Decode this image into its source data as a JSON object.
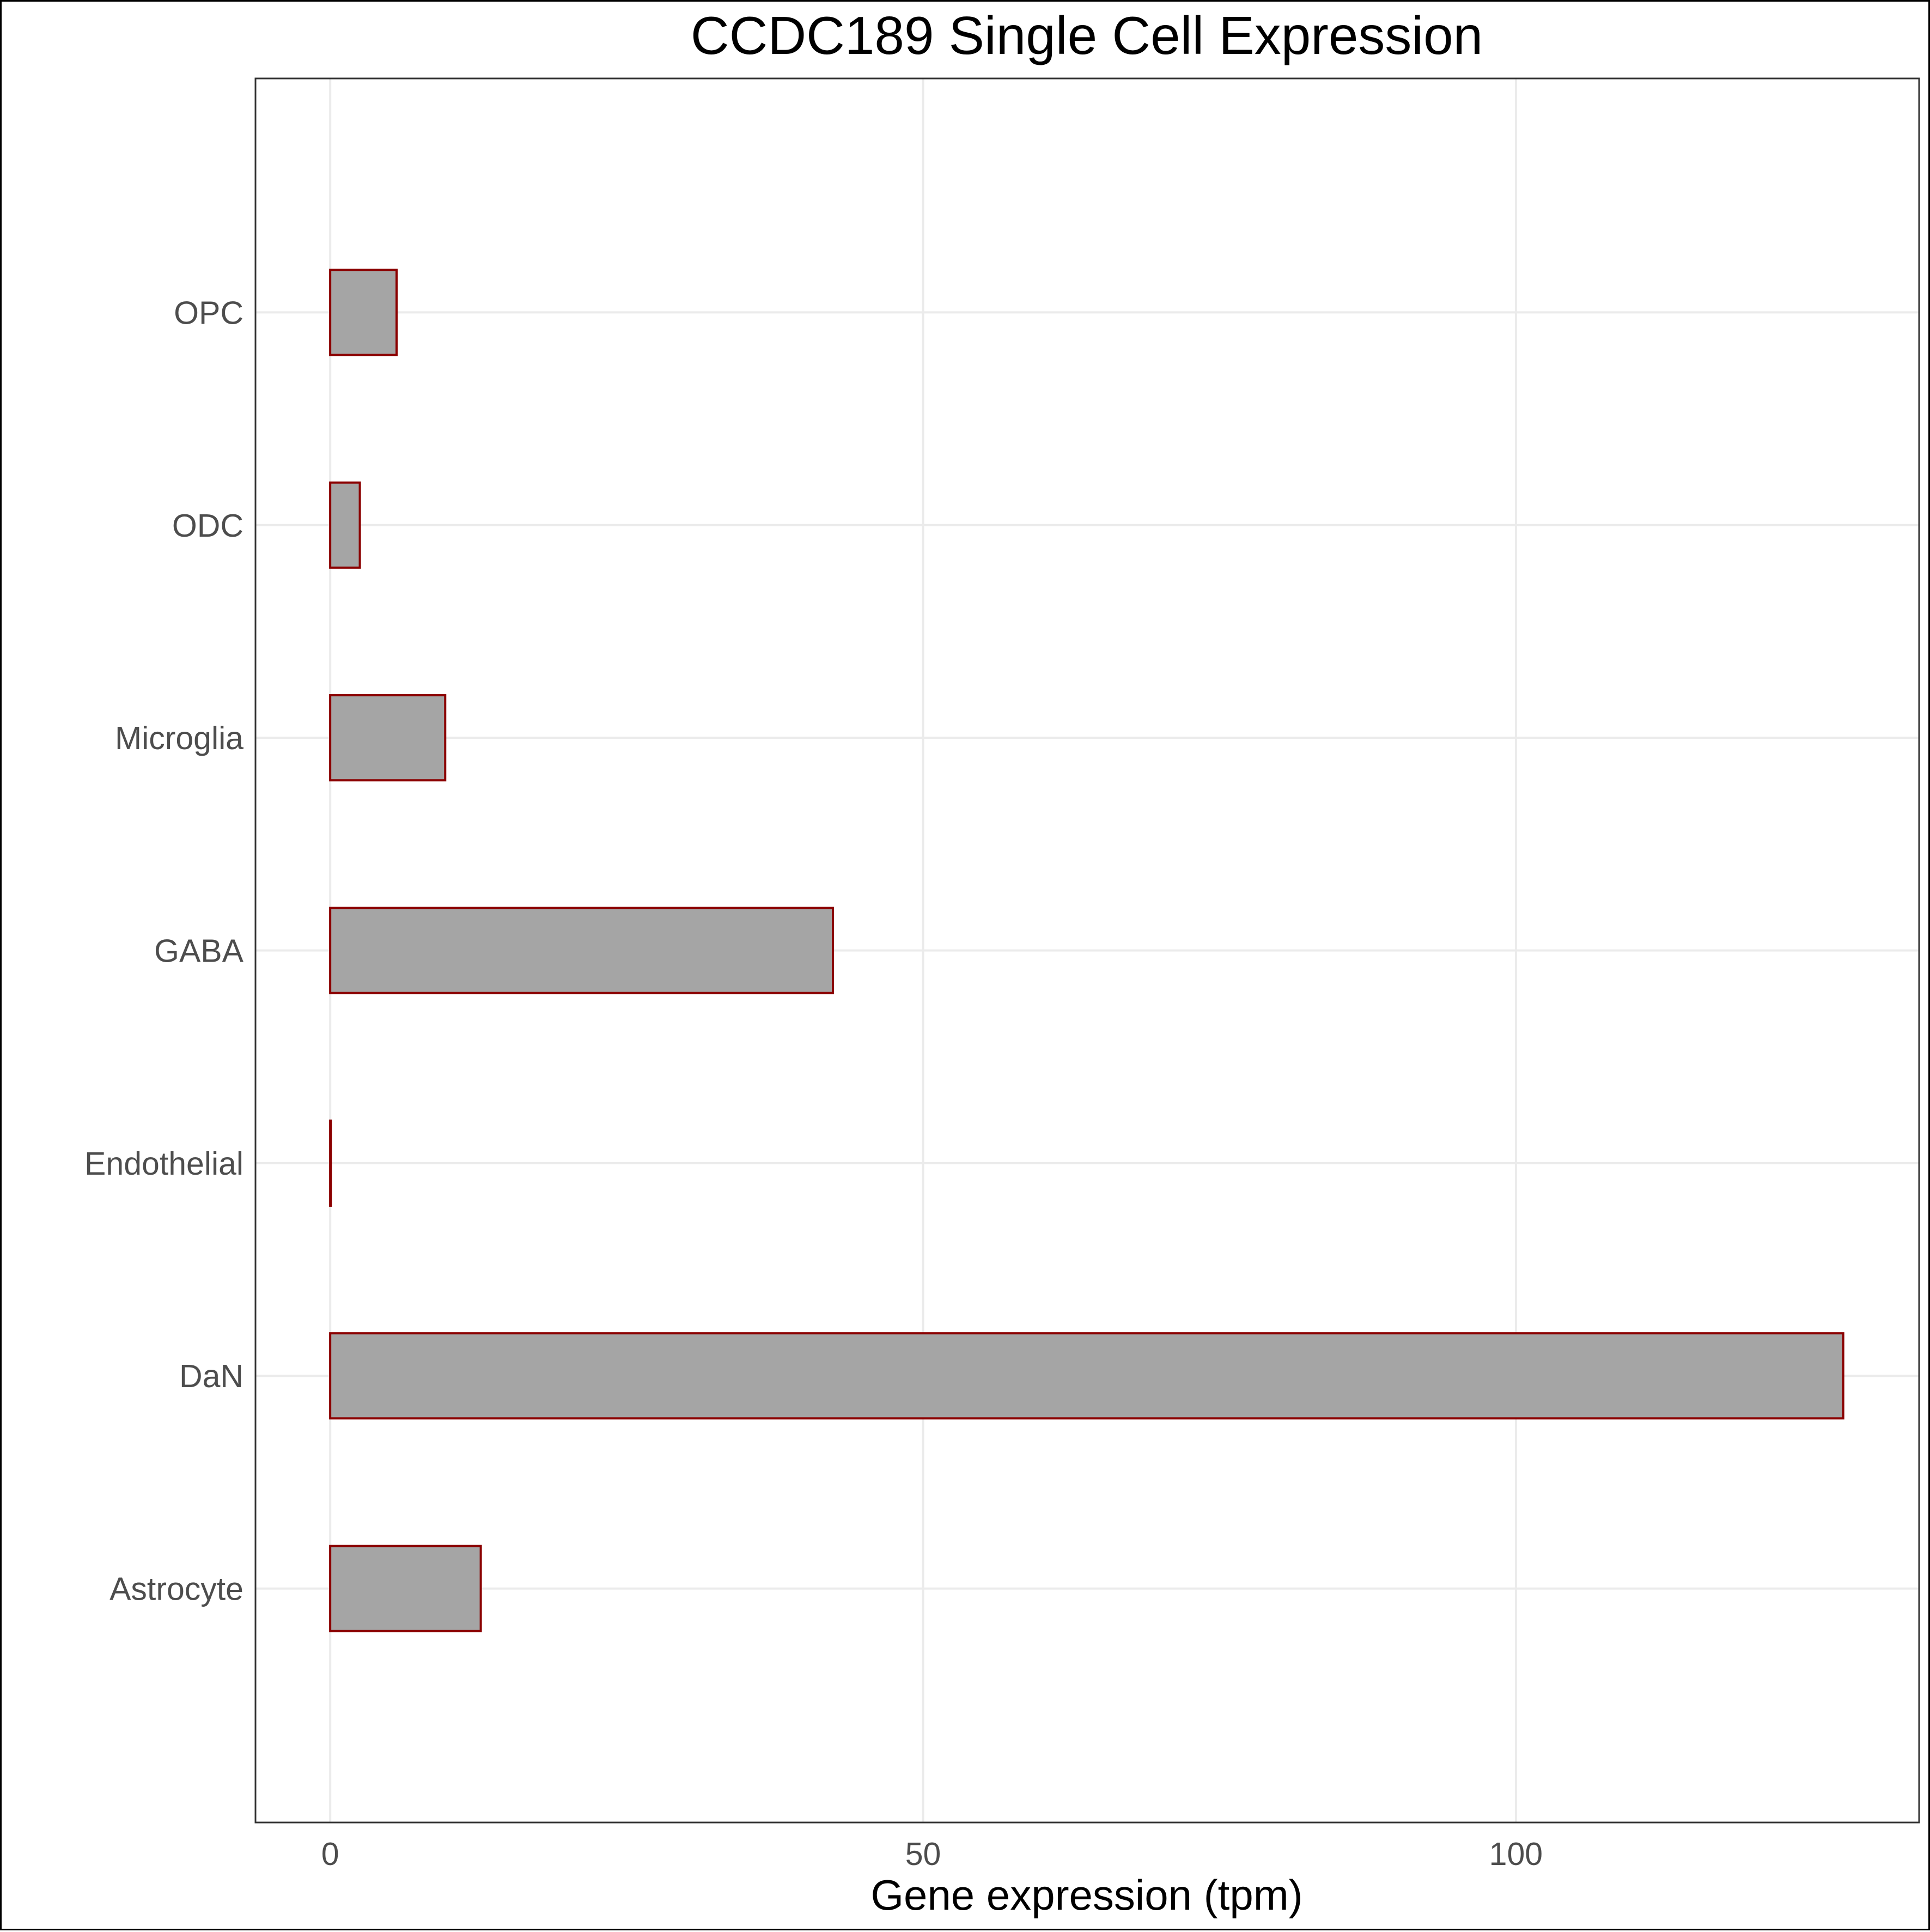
{
  "chart_data": {
    "type": "bar",
    "orientation": "horizontal",
    "title": "CCDC189 Single Cell Expression",
    "xlabel": "Gene expression (tpm)",
    "ylabel": "",
    "categories": [
      "Astrocyte",
      "DaN",
      "Endothelial",
      "GABA",
      "Microglia",
      "ODC",
      "OPC"
    ],
    "values": [
      12.7,
      127.6,
      0.05,
      42.4,
      9.7,
      2.5,
      5.6
    ],
    "xlim": [
      -6.3,
      134.0
    ],
    "xticks": [
      0,
      50,
      100
    ],
    "xtick_labels": [
      "0",
      "50",
      "100"
    ],
    "grid": true,
    "colors": {
      "bar_fill": "#a5a5a5",
      "bar_stroke": "#8b0000",
      "grid": "#ebebeb",
      "panel_border": "#333333",
      "tick_text": "#4d4d4d"
    }
  }
}
